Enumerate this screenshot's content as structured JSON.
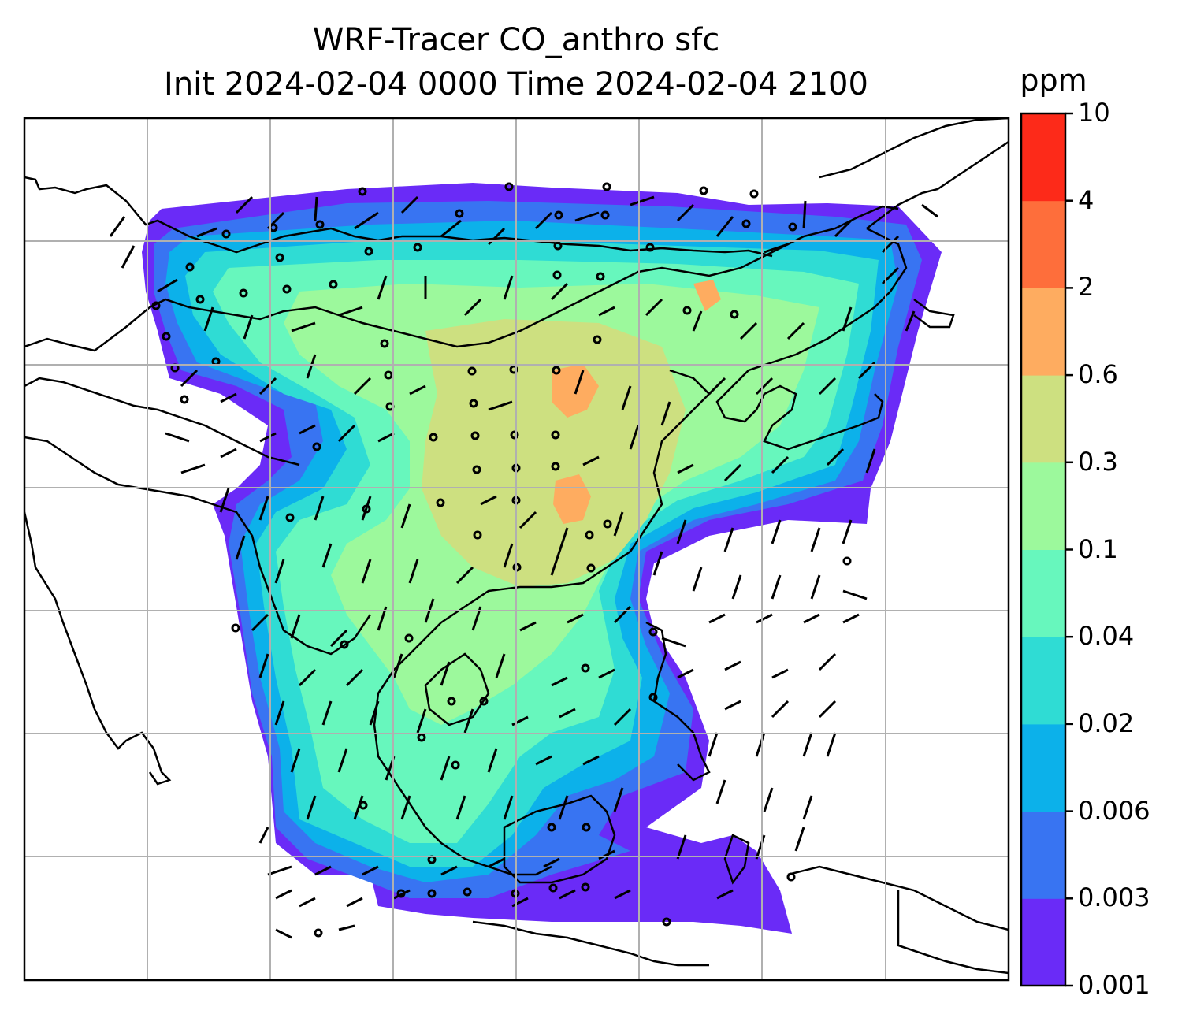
{
  "title": {
    "line1": "WRF-Tracer CO_anthro sfc",
    "line2": "Init 2024-02-04 0000 Time 2024-02-04 2100"
  },
  "colorbar": {
    "unit": "ppm",
    "levels": [
      "0.001",
      "0.003",
      "0.006",
      "0.02",
      "0.04",
      "0.1",
      "0.3",
      "0.6",
      "2",
      "4",
      "10"
    ],
    "colors": [
      "#6a2bf7",
      "#3874f2",
      "#0cb1ea",
      "#2fdcd4",
      "#67f7bd",
      "#9cf99c",
      "#cde080",
      "#feac60",
      "#fe6e3b",
      "#fd2a19"
    ]
  },
  "map": {
    "gridlines": true,
    "background": "#ffffff",
    "coastline_color": "#000000",
    "gridline_color": "#b0b0b0"
  }
}
